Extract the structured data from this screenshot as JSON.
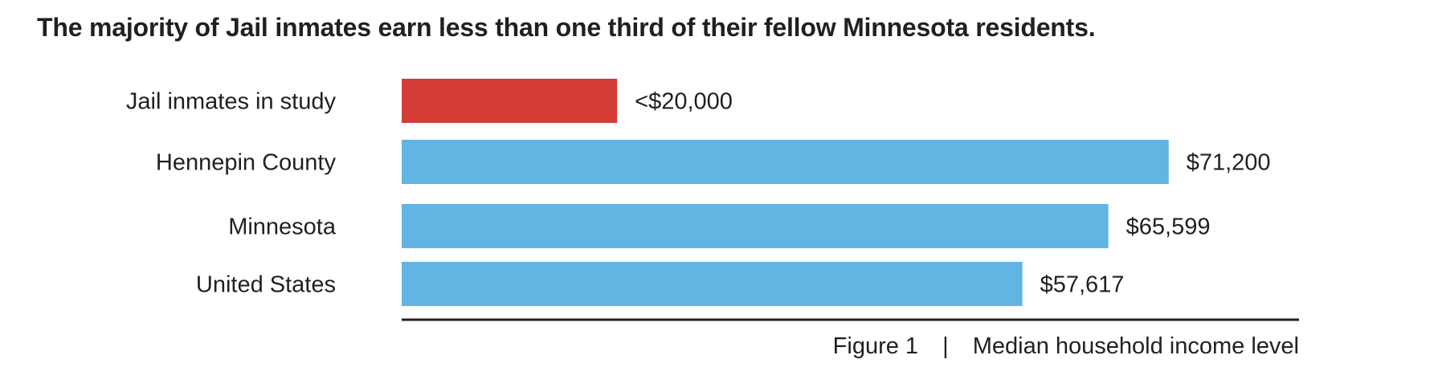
{
  "title": "The majority of Jail inmates earn less than one third of their fellow Minnesota residents.",
  "caption": {
    "figure": "Figure 1",
    "separator": "|",
    "text": "Median household income level"
  },
  "colors": {
    "highlight": "#d33d35",
    "bar": "#62b4e2",
    "text": "#231f20",
    "axis": "#231f20"
  },
  "chart_data": {
    "type": "bar",
    "orientation": "horizontal",
    "categories": [
      "Jail inmates in study",
      "Hennepin County",
      "Minnesota",
      "United States"
    ],
    "values": [
      20000,
      71200,
      65599,
      57617
    ],
    "value_labels": [
      "<$20,000",
      "$71,200",
      "$65,599",
      "$57,617"
    ],
    "bar_colors": [
      "#d33d35",
      "#62b4e2",
      "#62b4e2",
      "#62b4e2"
    ],
    "title": "The majority of Jail inmates earn less than one third of their fellow Minnesota residents.",
    "xlabel": "Median household income level",
    "ylabel": "",
    "xlim": [
      0,
      83300
    ],
    "grid": false,
    "legend": "none"
  }
}
